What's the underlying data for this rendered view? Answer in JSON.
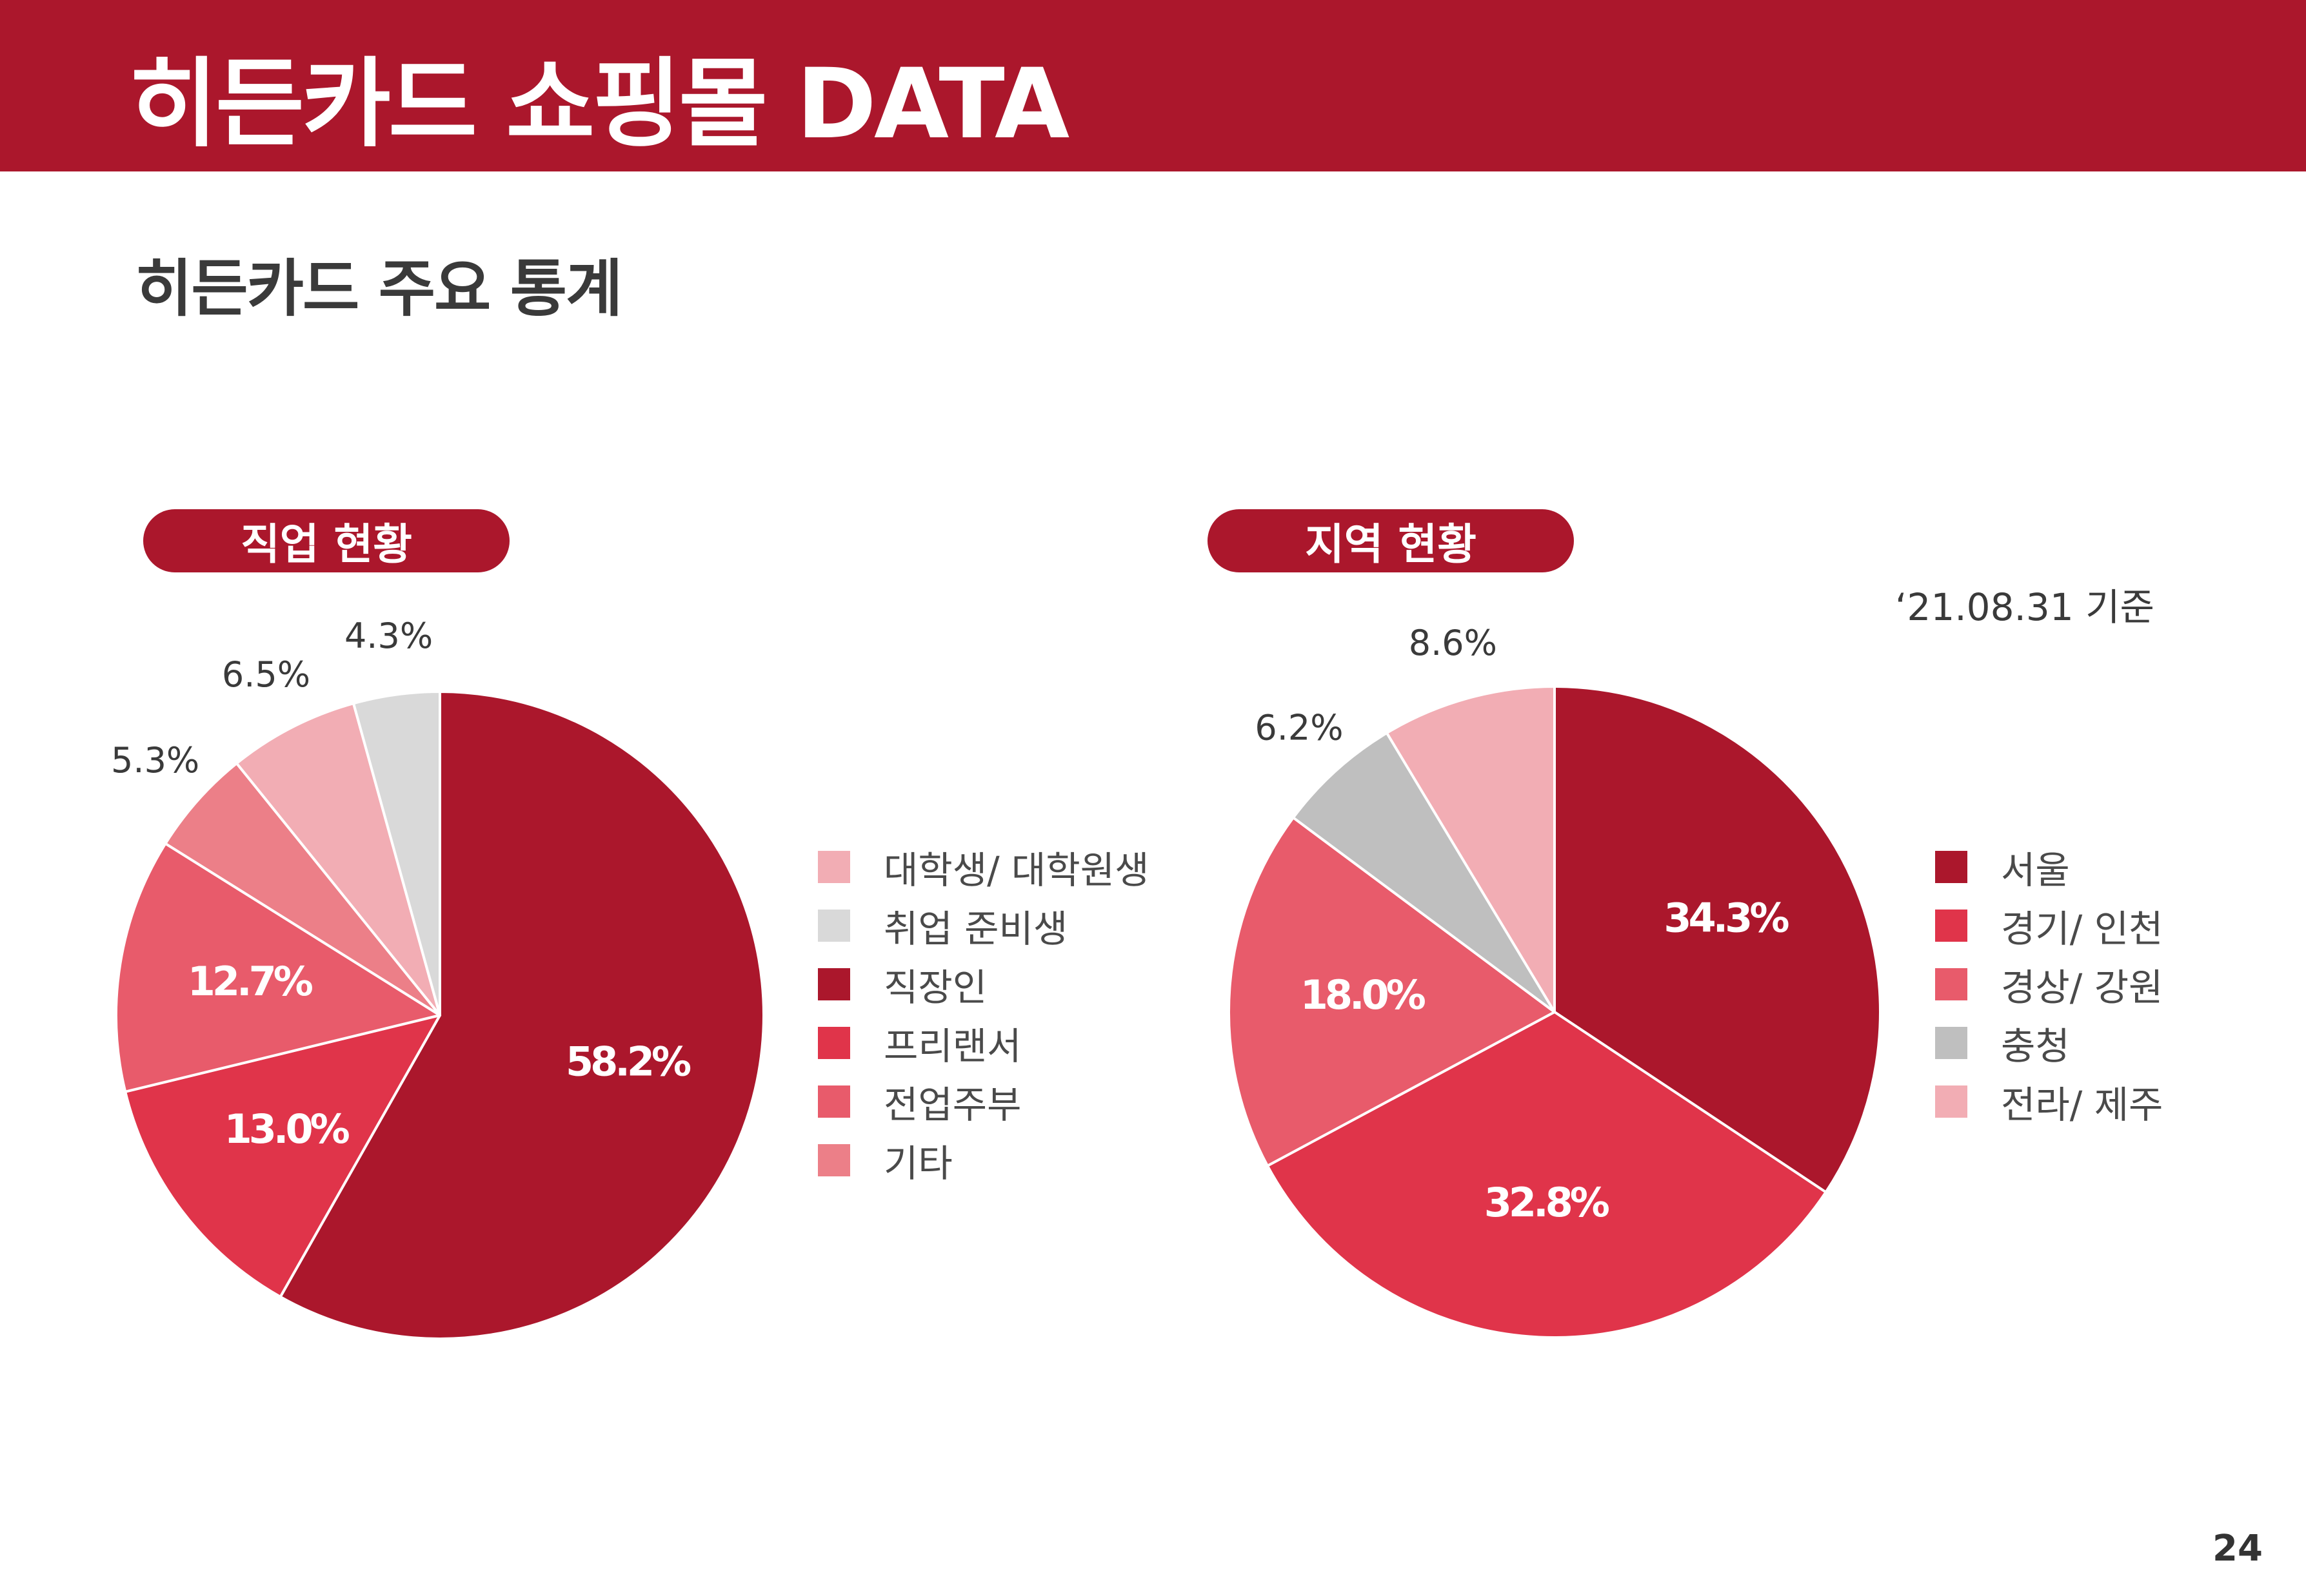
{
  "header": {
    "title": "히든카드 쇼핑몰 DATA"
  },
  "section": {
    "title": "히든카드 주요 통계"
  },
  "page_number": "24",
  "date_note": "‘21.08.31 기준",
  "chart_data": [
    {
      "type": "pie",
      "title": "직업 현황",
      "categories": [
        "직장인",
        "프리랜서",
        "전업주부",
        "기타",
        "대학생/ 대학원생",
        "취업 준비생"
      ],
      "values": [
        58.2,
        13.0,
        12.7,
        5.3,
        6.5,
        4.3
      ],
      "value_labels": [
        "58.2%",
        "13.0%",
        "12.7%",
        "5.3%",
        "6.5%",
        "4.3%"
      ],
      "colors": [
        "#ab172c",
        "#e0344a",
        "#e85b6b",
        "#ec7f88",
        "#f2adb4",
        "#d9d9d9"
      ],
      "legend": {
        "placement": "right",
        "order": [
          "대학생/ 대학원생",
          "취업 준비생",
          "직장인",
          "프리랜서",
          "전업주부",
          "기타"
        ]
      }
    },
    {
      "type": "pie",
      "title": "지역 현황",
      "categories": [
        "서울",
        "경기/ 인천",
        "경상/ 강원",
        "충청",
        "전라/ 제주"
      ],
      "values": [
        34.3,
        32.8,
        18.0,
        6.2,
        8.6
      ],
      "value_labels": [
        "34.3%",
        "32.8%",
        "18.0%",
        "6.2%",
        "8.6%"
      ],
      "colors": [
        "#ab172c",
        "#e0344a",
        "#e85b6b",
        "#bfbfbf",
        "#f2adb4"
      ],
      "legend": {
        "placement": "right",
        "order": [
          "서울",
          "경기/ 인천",
          "경상/ 강원",
          "충청",
          "전라/ 제주"
        ]
      }
    }
  ]
}
